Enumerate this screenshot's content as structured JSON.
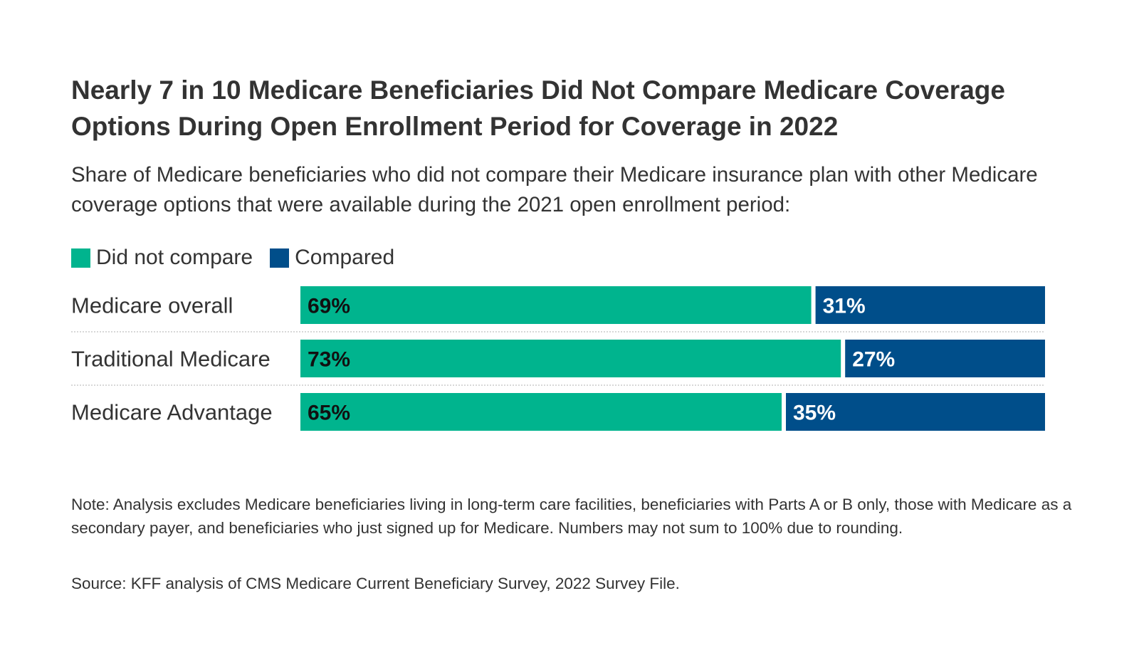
{
  "title": "Nearly 7 in 10 Medicare Beneficiaries Did Not Compare Medicare Coverage Options During Open Enrollment Period for Coverage in 2022",
  "subtitle": "Share of Medicare beneficiaries who did not compare their Medicare insurance plan with other Medicare coverage options that were available during the 2021 open enrollment period:",
  "note": "Note: Analysis excludes Medicare beneficiaries living in long-term care facilities, beneficiaries with Parts A or B only, those with Medicare as a secondary payer, and beneficiaries who just signed up for Medicare. Numbers may not sum to 100% due to rounding.",
  "source": "Source: KFF analysis of CMS Medicare Current Beneficiary Survey, 2022 Survey File.",
  "colors": {
    "did_not_compare": "#00b48e",
    "compared": "#004e8a",
    "label_dark": "#111111",
    "label_light": "#ffffff",
    "category_text": "#333333",
    "divider": "#cccccc"
  },
  "chart_data": {
    "type": "bar",
    "orientation": "horizontal",
    "stacked": true,
    "categories": [
      "Medicare overall",
      "Traditional Medicare",
      "Medicare Advantage"
    ],
    "series": [
      {
        "name": "Did not compare",
        "values": [
          69,
          73,
          65
        ],
        "labels": [
          "69%",
          "73%",
          "65%"
        ]
      },
      {
        "name": "Compared",
        "values": [
          31,
          27,
          35
        ],
        "labels": [
          "31%",
          "27%",
          "35%"
        ]
      }
    ],
    "xlim": [
      0,
      100
    ],
    "legend_position": "top-left",
    "grid": false
  }
}
